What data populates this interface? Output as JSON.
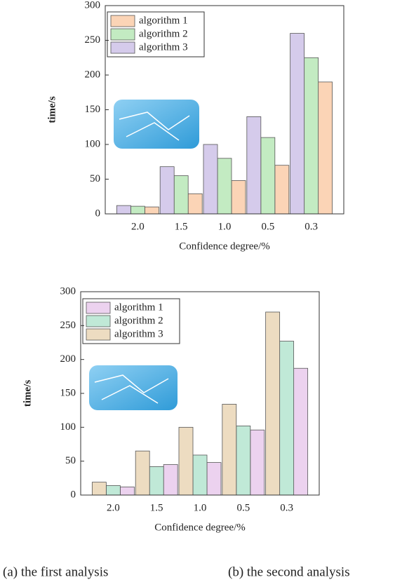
{
  "chart_data": [
    {
      "type": "bar",
      "caption": "(a)   the first analysis",
      "x_label": "Confidence degree/%",
      "y_label": "time/s",
      "categories": [
        "2.0",
        "1.5",
        "1.0",
        "0.5",
        "0.3"
      ],
      "series": [
        {
          "name": "algorithm 1",
          "color": "#fbd4b6",
          "values": [
            10,
            29,
            48,
            70,
            190
          ]
        },
        {
          "name": "algorithm 2",
          "color": "#c3ebc2",
          "values": [
            11,
            55,
            80,
            110,
            225
          ]
        },
        {
          "name": "algorithm 3",
          "color": "#d5cbeb",
          "values": [
            12,
            68,
            100,
            140,
            260
          ]
        }
      ],
      "ylim": [
        0,
        300
      ],
      "yticks": [
        0,
        50,
        100,
        150,
        200,
        250,
        300
      ]
    },
    {
      "type": "bar",
      "caption": "(b) the second analysis",
      "x_label": "Confidence degree/%",
      "y_label": "time/s",
      "categories": [
        "2.0",
        "1.5",
        "1.0",
        "0.5",
        "0.3"
      ],
      "series": [
        {
          "name": "algorithm 1",
          "color": "#ecd2ef",
          "values": [
            12,
            45,
            48,
            96,
            187
          ]
        },
        {
          "name": "algorithm 2",
          "color": "#c0e9d7",
          "values": [
            14,
            42,
            59,
            102,
            227
          ]
        },
        {
          "name": "algorithm 3",
          "color": "#eddcc1",
          "values": [
            19,
            65,
            100,
            134,
            270
          ]
        }
      ],
      "ylim": [
        0,
        300
      ],
      "yticks": [
        0,
        50,
        100,
        150,
        200,
        250,
        300
      ]
    }
  ]
}
